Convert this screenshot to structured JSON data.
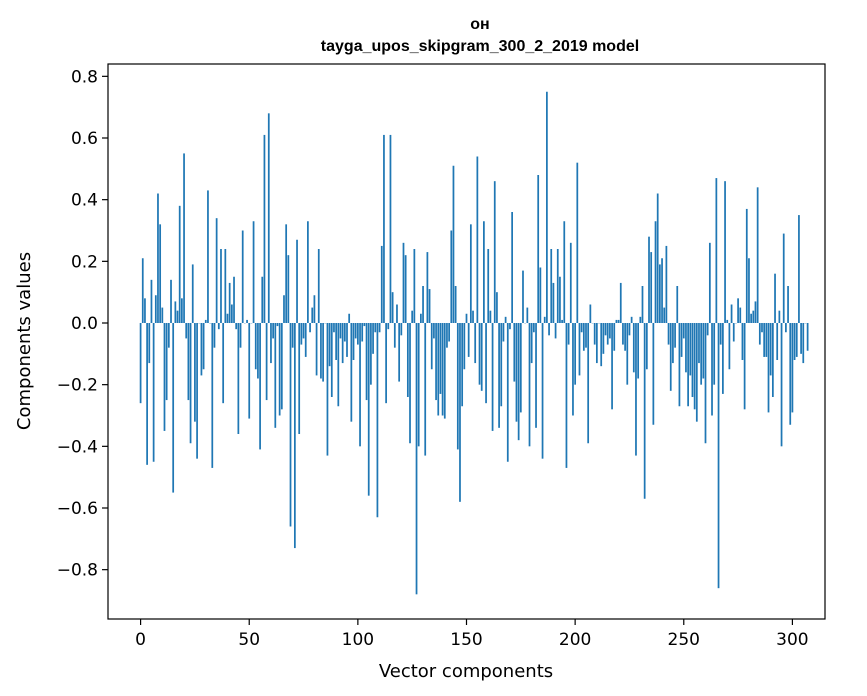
{
  "chart_data": {
    "type": "bar",
    "title": "он",
    "subtitle": "tayga_upos_skipgram_300_2_2019 model",
    "xlabel": "Vector components",
    "ylabel": "Components values",
    "xlim": [
      -15,
      315
    ],
    "ylim": [
      -0.96,
      0.84
    ],
    "xticks": [
      0,
      50,
      100,
      150,
      200,
      250,
      300
    ],
    "xtick_labels": [
      "0",
      "50",
      "100",
      "150",
      "200",
      "250",
      "300"
    ],
    "yticks": [
      -0.8,
      -0.6,
      -0.4,
      -0.2,
      0.0,
      0.2,
      0.4,
      0.6,
      0.8
    ],
    "ytick_labels": [
      "−0.8",
      "−0.6",
      "−0.4",
      "−0.2",
      "0.0",
      "0.2",
      "0.4",
      "0.6",
      "0.8"
    ],
    "bar_color": "#1f77b4",
    "values": [
      -0.26,
      0.21,
      0.08,
      -0.46,
      -0.13,
      0.14,
      -0.45,
      0.09,
      0.42,
      0.32,
      0.05,
      -0.35,
      -0.25,
      -0.08,
      0.14,
      -0.55,
      0.07,
      0.04,
      0.38,
      0.08,
      0.55,
      -0.05,
      -0.25,
      -0.39,
      0.19,
      -0.32,
      -0.44,
      0.0,
      -0.17,
      -0.15,
      0.01,
      0.43,
      0.0,
      -0.47,
      -0.08,
      0.34,
      -0.02,
      0.24,
      -0.26,
      0.24,
      0.03,
      0.13,
      0.06,
      0.15,
      -0.02,
      -0.36,
      -0.08,
      0.3,
      0.0,
      0.01,
      -0.31,
      0.0,
      0.33,
      -0.15,
      -0.18,
      -0.41,
      0.15,
      0.61,
      -0.25,
      0.68,
      -0.13,
      -0.05,
      -0.34,
      -0.01,
      -0.3,
      -0.28,
      0.09,
      0.32,
      0.22,
      -0.66,
      -0.08,
      -0.73,
      0.27,
      -0.36,
      -0.07,
      -0.05,
      -0.11,
      0.33,
      -0.03,
      0.05,
      0.09,
      -0.17,
      0.24,
      -0.18,
      -0.19,
      0.0,
      -0.43,
      -0.14,
      -0.24,
      -0.03,
      -0.12,
      -0.27,
      -0.05,
      -0.13,
      -0.06,
      -0.11,
      0.03,
      -0.32,
      -0.12,
      -0.05,
      -0.07,
      -0.4,
      -0.06,
      -0.01,
      -0.25,
      -0.56,
      -0.2,
      -0.1,
      -0.03,
      -0.63,
      -0.03,
      0.25,
      0.61,
      -0.26,
      -0.02,
      0.61,
      0.1,
      -0.08,
      0.06,
      -0.19,
      -0.04,
      0.26,
      0.22,
      -0.24,
      -0.39,
      0.04,
      0.24,
      -0.88,
      -0.4,
      0.03,
      0.12,
      -0.43,
      0.23,
      0.11,
      -0.15,
      -0.05,
      -0.25,
      -0.3,
      -0.23,
      -0.3,
      -0.31,
      -0.08,
      -0.06,
      0.3,
      0.51,
      0.12,
      -0.41,
      -0.58,
      -0.27,
      -0.15,
      0.03,
      -0.11,
      0.32,
      0.04,
      -0.13,
      0.54,
      -0.2,
      -0.22,
      0.33,
      -0.26,
      0.24,
      0.04,
      -0.35,
      0.46,
      0.1,
      -0.34,
      -0.27,
      -0.06,
      0.02,
      -0.45,
      -0.02,
      0.36,
      -0.19,
      -0.32,
      -0.38,
      -0.29,
      0.17,
      0.0,
      0.05,
      -0.4,
      -0.13,
      -0.03,
      -0.34,
      0.48,
      0.18,
      -0.44,
      0.02,
      0.75,
      -0.04,
      0.24,
      0.13,
      -0.05,
      0.24,
      0.15,
      0.01,
      0.33,
      -0.47,
      -0.07,
      0.26,
      -0.3,
      -0.2,
      0.52,
      -0.17,
      -0.03,
      -0.09,
      -0.08,
      -0.39,
      0.06,
      0.0,
      -0.07,
      -0.13,
      0.0,
      -0.14,
      -0.1,
      -0.04,
      -0.07,
      -0.05,
      -0.28,
      -0.09,
      0.01,
      0.01,
      0.13,
      -0.07,
      -0.09,
      -0.2,
      -0.04,
      0.02,
      -0.16,
      -0.43,
      -0.18,
      0.02,
      0.12,
      -0.57,
      -0.15,
      0.28,
      0.23,
      -0.33,
      0.33,
      0.42,
      0.19,
      0.21,
      0.05,
      0.25,
      -0.07,
      -0.22,
      -0.13,
      -0.08,
      0.12,
      -0.27,
      -0.11,
      -0.05,
      -0.16,
      -0.27,
      -0.17,
      -0.24,
      -0.28,
      -0.32,
      -0.13,
      -0.2,
      -0.18,
      -0.39,
      -0.04,
      0.26,
      -0.3,
      -0.2,
      0.47,
      -0.86,
      -0.07,
      -0.23,
      0.46,
      0.01,
      -0.15,
      0.06,
      -0.06,
      0.0,
      0.08,
      0.05,
      -0.12,
      -0.28,
      0.37,
      0.21,
      0.03,
      0.04,
      0.07,
      0.44,
      -0.07,
      -0.03,
      -0.11,
      -0.11,
      -0.29,
      -0.17,
      -0.24,
      0.16,
      -0.12,
      0.04,
      -0.4,
      0.29,
      -0.03,
      0.12,
      -0.33,
      -0.29,
      -0.12,
      -0.11,
      0.35,
      -0.1,
      -0.13,
      0.0,
      -0.09
    ]
  }
}
